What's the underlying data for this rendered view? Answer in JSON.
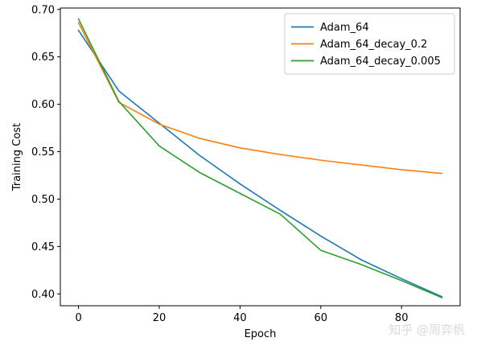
{
  "chart_data": {
    "type": "line",
    "title": "",
    "xlabel": "Epoch",
    "ylabel": "Training Cost",
    "xlim": [
      -4.5,
      94.5
    ],
    "ylim": [
      0.3875,
      0.7015
    ],
    "xticks": [
      0,
      20,
      40,
      60,
      80
    ],
    "yticks": [
      0.4,
      0.45,
      0.5,
      0.55,
      0.6,
      0.65,
      0.7
    ],
    "x": [
      0,
      10,
      20,
      30,
      40,
      50,
      60,
      70,
      80,
      90
    ],
    "grid": false,
    "legend_position": "top-right",
    "series": [
      {
        "name": "Adam_64",
        "color": "#1f77b4",
        "values": [
          0.678,
          0.614,
          0.58,
          0.546,
          0.516,
          0.488,
          0.461,
          0.436,
          0.416,
          0.397
        ]
      },
      {
        "name": "Adam_64_decay_0.2",
        "color": "#ff7f0e",
        "values": [
          0.686,
          0.602,
          0.579,
          0.564,
          0.554,
          0.547,
          0.541,
          0.536,
          0.531,
          0.527
        ]
      },
      {
        "name": "Adam_64_decay_0.005",
        "color": "#2ca02c",
        "values": [
          0.69,
          0.603,
          0.556,
          0.528,
          0.506,
          0.484,
          0.446,
          0.431,
          0.414,
          0.396
        ]
      }
    ]
  },
  "watermark": {
    "text": "知乎 @周弈帆"
  }
}
